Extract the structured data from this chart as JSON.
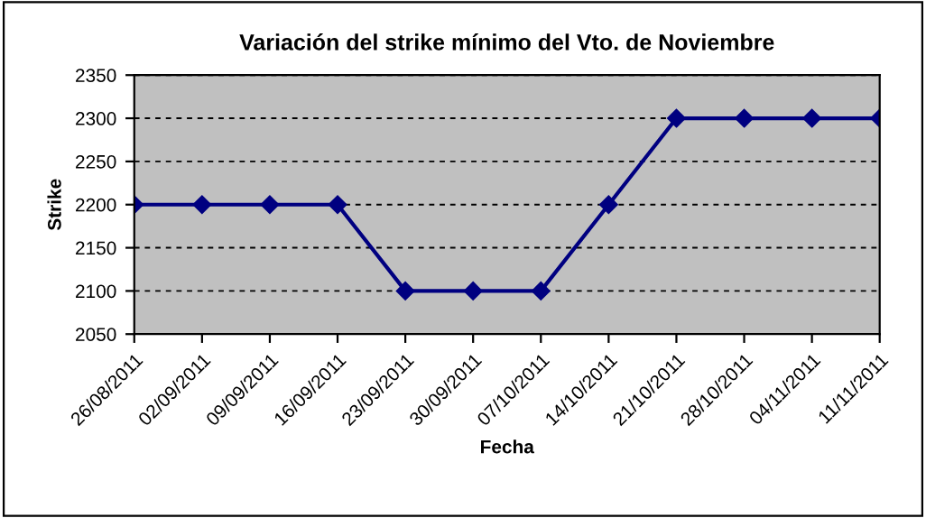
{
  "chart_data": {
    "type": "line",
    "title": "Variación del strike mínimo del Vto. de Noviembre",
    "xlabel": "Fecha",
    "ylabel": "Strike",
    "categories": [
      "26/08/2011",
      "02/09/2011",
      "09/09/2011",
      "16/09/2011",
      "23/09/2011",
      "30/09/2011",
      "07/10/2011",
      "14/10/2011",
      "21/10/2011",
      "28/10/2011",
      "04/11/2011",
      "11/11/2011"
    ],
    "series": [
      {
        "color": "#000080",
        "values": [
          2200,
          2200,
          2200,
          2200,
          2100,
          2100,
          2100,
          2200,
          2300,
          2300,
          2300,
          2300
        ]
      }
    ],
    "ylim": [
      2050,
      2350
    ],
    "yticks": [
      2050,
      2100,
      2150,
      2200,
      2250,
      2300,
      2350
    ],
    "grid": "y",
    "marker": "diamond",
    "line_style": "solid"
  }
}
